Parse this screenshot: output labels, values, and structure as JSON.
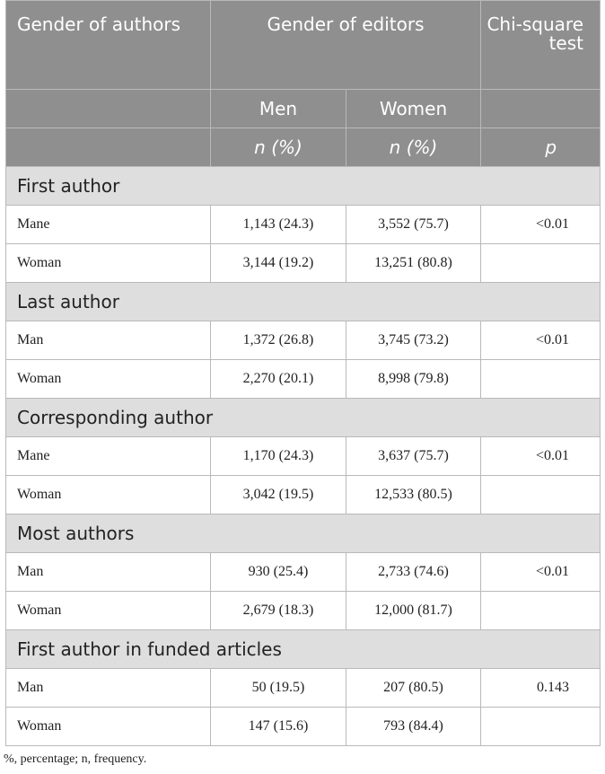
{
  "header": {
    "gender_of_authors": "Gender of authors",
    "gender_of_editors": "Gender of editors",
    "chi_square": "Chi-square test",
    "men": "Men",
    "women": "Women",
    "n_pct_men": "n (%)",
    "n_pct_women": "n (%)",
    "p": "p"
  },
  "sections": [
    {
      "title": "First author",
      "rows": [
        {
          "label": "Mane",
          "men": "1,143 (24.3)",
          "women": "3,552 (75.7)",
          "p": "<0.01"
        },
        {
          "label": "Woman",
          "men": "3,144 (19.2)",
          "women": "13,251 (80.8)",
          "p": ""
        }
      ]
    },
    {
      "title": "Last author",
      "rows": [
        {
          "label": "Man",
          "men": "1,372 (26.8)",
          "women": "3,745 (73.2)",
          "p": "<0.01"
        },
        {
          "label": "Woman",
          "men": "2,270 (20.1)",
          "women": "8,998 (79.8)",
          "p": ""
        }
      ]
    },
    {
      "title": "Corresponding author",
      "rows": [
        {
          "label": "Mane",
          "men": "1,170 (24.3)",
          "women": "3,637 (75.7)",
          "p": "<0.01"
        },
        {
          "label": "Woman",
          "men": "3,042 (19.5)",
          "women": "12,533 (80.5)",
          "p": ""
        }
      ]
    },
    {
      "title": "Most authors",
      "rows": [
        {
          "label": "Man",
          "men": "930 (25.4)",
          "women": "2,733 (74.6)",
          "p": "<0.01"
        },
        {
          "label": "Woman",
          "men": "2,679 (18.3)",
          "women": "12,000 (81.7)",
          "p": ""
        }
      ]
    },
    {
      "title": "First author in funded articles",
      "rows": [
        {
          "label": "Man",
          "men": "50 (19.5)",
          "women": "207 (80.5)",
          "p": "0.143"
        },
        {
          "label": "Woman",
          "men": "147 (15.6)",
          "women": "793 (84.4)",
          "p": ""
        }
      ]
    }
  ],
  "footnote": "%, percentage; n, frequency."
}
